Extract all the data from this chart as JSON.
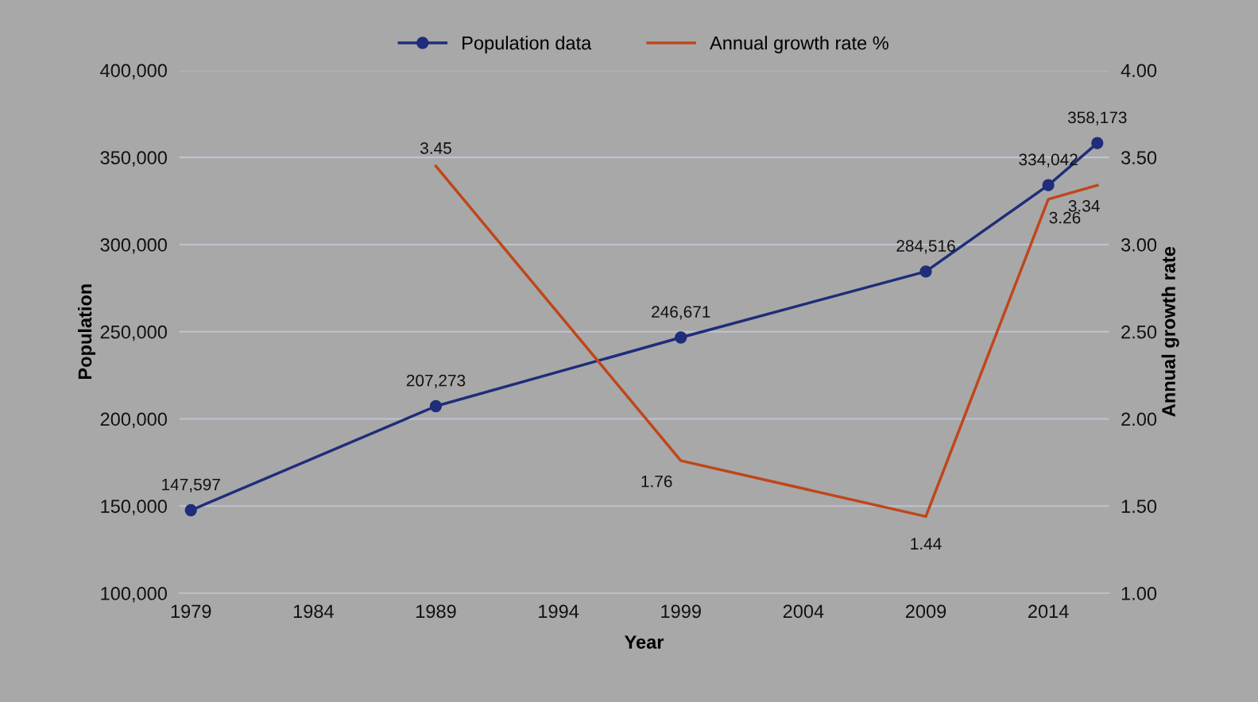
{
  "chart_data": {
    "type": "line",
    "xlabel": "Year",
    "ylabel": "Population",
    "y2label": "Annual growth rate",
    "xlim": [
      1978.5,
      2016.5
    ],
    "xticks": [
      1979,
      1984,
      1989,
      1994,
      1999,
      2004,
      2009,
      2014
    ],
    "ylim": [
      100000,
      400000
    ],
    "yticks": [
      {
        "value": 100000,
        "label": "100,000"
      },
      {
        "value": 150000,
        "label": "150,000"
      },
      {
        "value": 200000,
        "label": "200,000"
      },
      {
        "value": 250000,
        "label": "250,000"
      },
      {
        "value": 300000,
        "label": "300,000"
      },
      {
        "value": 350000,
        "label": "350,000"
      },
      {
        "value": 400000,
        "label": "400,000"
      }
    ],
    "y2lim": [
      1,
      4
    ],
    "y2ticks": [
      {
        "value": 1,
        "label": "1.00"
      },
      {
        "value": 1.5,
        "label": "1.50"
      },
      {
        "value": 2,
        "label": "2.00"
      },
      {
        "value": 2.5,
        "label": "2.50"
      },
      {
        "value": 3,
        "label": "3.00"
      },
      {
        "value": 3.5,
        "label": "3.50"
      },
      {
        "value": 4,
        "label": "4.00"
      }
    ],
    "grid": "y",
    "legend": "top",
    "series": [
      {
        "name": "Population data",
        "color": "#1f2d7a",
        "marker": "circle",
        "x": [
          1979,
          1989,
          1999,
          2009,
          2014,
          2016
        ],
        "values": [
          147597,
          207273,
          246671,
          284516,
          334042,
          358173
        ],
        "value_labels": [
          "147,597",
          "207,273",
          "246,671",
          "284,516",
          "334,042",
          "358,173"
        ]
      },
      {
        "name": "Annual growth rate %",
        "color": "#c0461a",
        "marker": "none",
        "axis": "y2",
        "x": [
          1989,
          1999,
          2009,
          2014,
          2016
        ],
        "values": [
          3.45,
          1.76,
          1.44,
          3.26,
          3.34
        ],
        "value_labels": [
          "3.45",
          "1.76",
          "1.44",
          "3.26",
          "3.34"
        ]
      }
    ]
  }
}
